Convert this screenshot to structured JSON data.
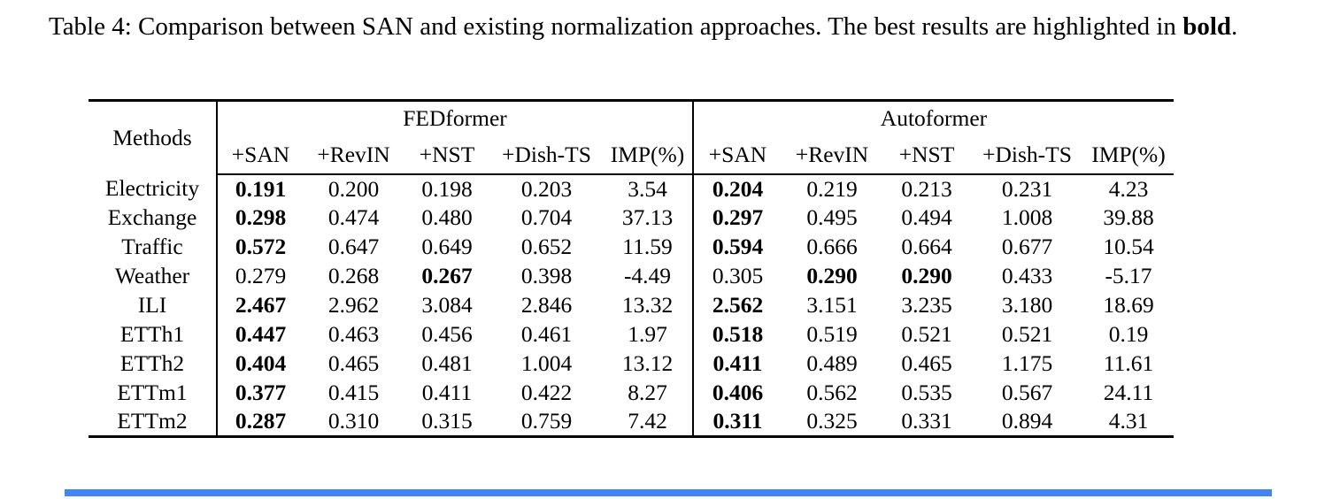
{
  "caption": {
    "text_before_bold": "Table 4: Comparison between SAN and existing normalization approaches. The best results are highlighted in ",
    "bold_text": "bold",
    "text_after_bold": "."
  },
  "ui": {
    "bottom_bar_color": "#4285f4"
  },
  "table": {
    "methods_header": "Methods",
    "groups": [
      {
        "label": "FEDformer",
        "columns": [
          "+SAN",
          "+RevIN",
          "+NST",
          "+Dish-TS",
          "IMP(%)"
        ]
      },
      {
        "label": "Autoformer",
        "columns": [
          "+SAN",
          "+RevIN",
          "+NST",
          "+Dish-TS",
          "IMP(%)"
        ]
      }
    ],
    "rows": [
      {
        "method": "Electricity",
        "values": [
          "0.191",
          "0.200",
          "0.198",
          "0.203",
          "3.54",
          "0.204",
          "0.219",
          "0.213",
          "0.231",
          "4.23"
        ],
        "bold": [
          0,
          5
        ]
      },
      {
        "method": "Exchange",
        "values": [
          "0.298",
          "0.474",
          "0.480",
          "0.704",
          "37.13",
          "0.297",
          "0.495",
          "0.494",
          "1.008",
          "39.88"
        ],
        "bold": [
          0,
          5
        ]
      },
      {
        "method": "Traffic",
        "values": [
          "0.572",
          "0.647",
          "0.649",
          "0.652",
          "11.59",
          "0.594",
          "0.666",
          "0.664",
          "0.677",
          "10.54"
        ],
        "bold": [
          0,
          5
        ]
      },
      {
        "method": "Weather",
        "values": [
          "0.279",
          "0.268",
          "0.267",
          "0.398",
          "-4.49",
          "0.305",
          "0.290",
          "0.290",
          "0.433",
          "-5.17"
        ],
        "bold": [
          2,
          6,
          7
        ]
      },
      {
        "method": "ILI",
        "values": [
          "2.467",
          "2.962",
          "3.084",
          "2.846",
          "13.32",
          "2.562",
          "3.151",
          "3.235",
          "3.180",
          "18.69"
        ],
        "bold": [
          0,
          5
        ]
      },
      {
        "method": "ETTh1",
        "values": [
          "0.447",
          "0.463",
          "0.456",
          "0.461",
          "1.97",
          "0.518",
          "0.519",
          "0.521",
          "0.521",
          "0.19"
        ],
        "bold": [
          0,
          5
        ]
      },
      {
        "method": "ETTh2",
        "values": [
          "0.404",
          "0.465",
          "0.481",
          "1.004",
          "13.12",
          "0.411",
          "0.489",
          "0.465",
          "1.175",
          "11.61"
        ],
        "bold": [
          0,
          5
        ]
      },
      {
        "method": "ETTm1",
        "values": [
          "0.377",
          "0.415",
          "0.411",
          "0.422",
          "8.27",
          "0.406",
          "0.562",
          "0.535",
          "0.567",
          "24.11"
        ],
        "bold": [
          0,
          5
        ]
      },
      {
        "method": "ETTm2",
        "values": [
          "0.287",
          "0.310",
          "0.315",
          "0.759",
          "7.42",
          "0.311",
          "0.325",
          "0.331",
          "0.894",
          "4.31"
        ],
        "bold": [
          0,
          5
        ]
      }
    ]
  }
}
